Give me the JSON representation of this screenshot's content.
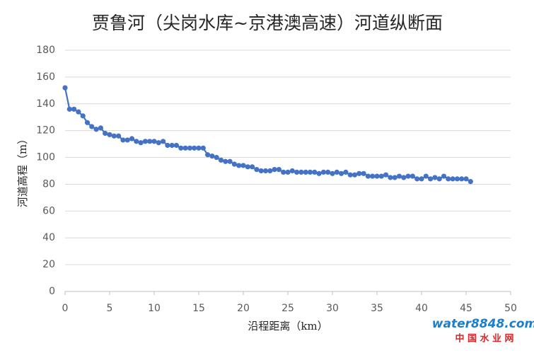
{
  "chart_data": {
    "type": "line",
    "title": "贾鲁河（尖岗水库~京港澳高速）河道纵断面",
    "x_label": "沿程距离（km）",
    "y_label": "河道高程（m）",
    "x": [
      0,
      0.5,
      1,
      1.5,
      2,
      2.5,
      3,
      3.5,
      4,
      4.5,
      5,
      5.5,
      6,
      6.5,
      7,
      7.5,
      8,
      8.5,
      9,
      9.5,
      10,
      10.5,
      11,
      11.5,
      12,
      12.5,
      13,
      13.5,
      14,
      14.5,
      15,
      15.5,
      16,
      16.5,
      17,
      17.5,
      18,
      18.5,
      19,
      19.5,
      20,
      20.5,
      21,
      21.5,
      22,
      22.5,
      23,
      23.5,
      24,
      24.5,
      25,
      25.5,
      26,
      26.5,
      27,
      27.5,
      28,
      28.5,
      29,
      29.5,
      30,
      30.5,
      31,
      31.5,
      32,
      32.5,
      33,
      33.5,
      34,
      34.5,
      35,
      35.5,
      36,
      36.5,
      37,
      37.5,
      38,
      38.5,
      39,
      39.5,
      40,
      40.5,
      41,
      41.5,
      42,
      42.5,
      43,
      43.5,
      44,
      44.5,
      45,
      45.5
    ],
    "series": [
      {
        "name": "河道高程",
        "color": "#4472c4",
        "values": [
          152,
          136,
          136,
          134,
          131,
          126,
          123,
          121,
          122,
          118,
          117,
          116,
          116,
          113,
          113,
          114,
          112,
          111,
          112,
          112,
          112,
          111,
          112,
          109,
          109,
          109,
          107,
          107,
          107,
          107,
          107,
          107,
          102,
          101,
          100,
          98,
          97,
          97,
          95,
          94,
          94,
          93,
          93,
          91,
          90,
          90,
          90,
          91,
          91,
          89,
          89,
          90,
          89,
          89,
          89,
          89,
          89,
          88,
          89,
          89,
          88,
          89,
          88,
          89,
          87,
          87,
          88,
          88,
          86,
          86,
          86,
          86,
          87,
          85,
          85,
          86,
          85,
          86,
          86,
          84,
          84,
          86,
          84,
          85,
          84,
          86,
          84,
          84,
          84,
          84,
          84,
          82
        ]
      }
    ],
    "xlim": [
      0,
      50
    ],
    "xticks": [
      0,
      5,
      10,
      15,
      20,
      25,
      30,
      35,
      40,
      45,
      50
    ],
    "ylim": [
      0,
      180
    ],
    "yticks": [
      0,
      20,
      40,
      60,
      80,
      100,
      120,
      140,
      160,
      180
    ],
    "grid": true
  },
  "watermark": {
    "logo": "water8848.com",
    "name": "中 国 水 业 网"
  }
}
